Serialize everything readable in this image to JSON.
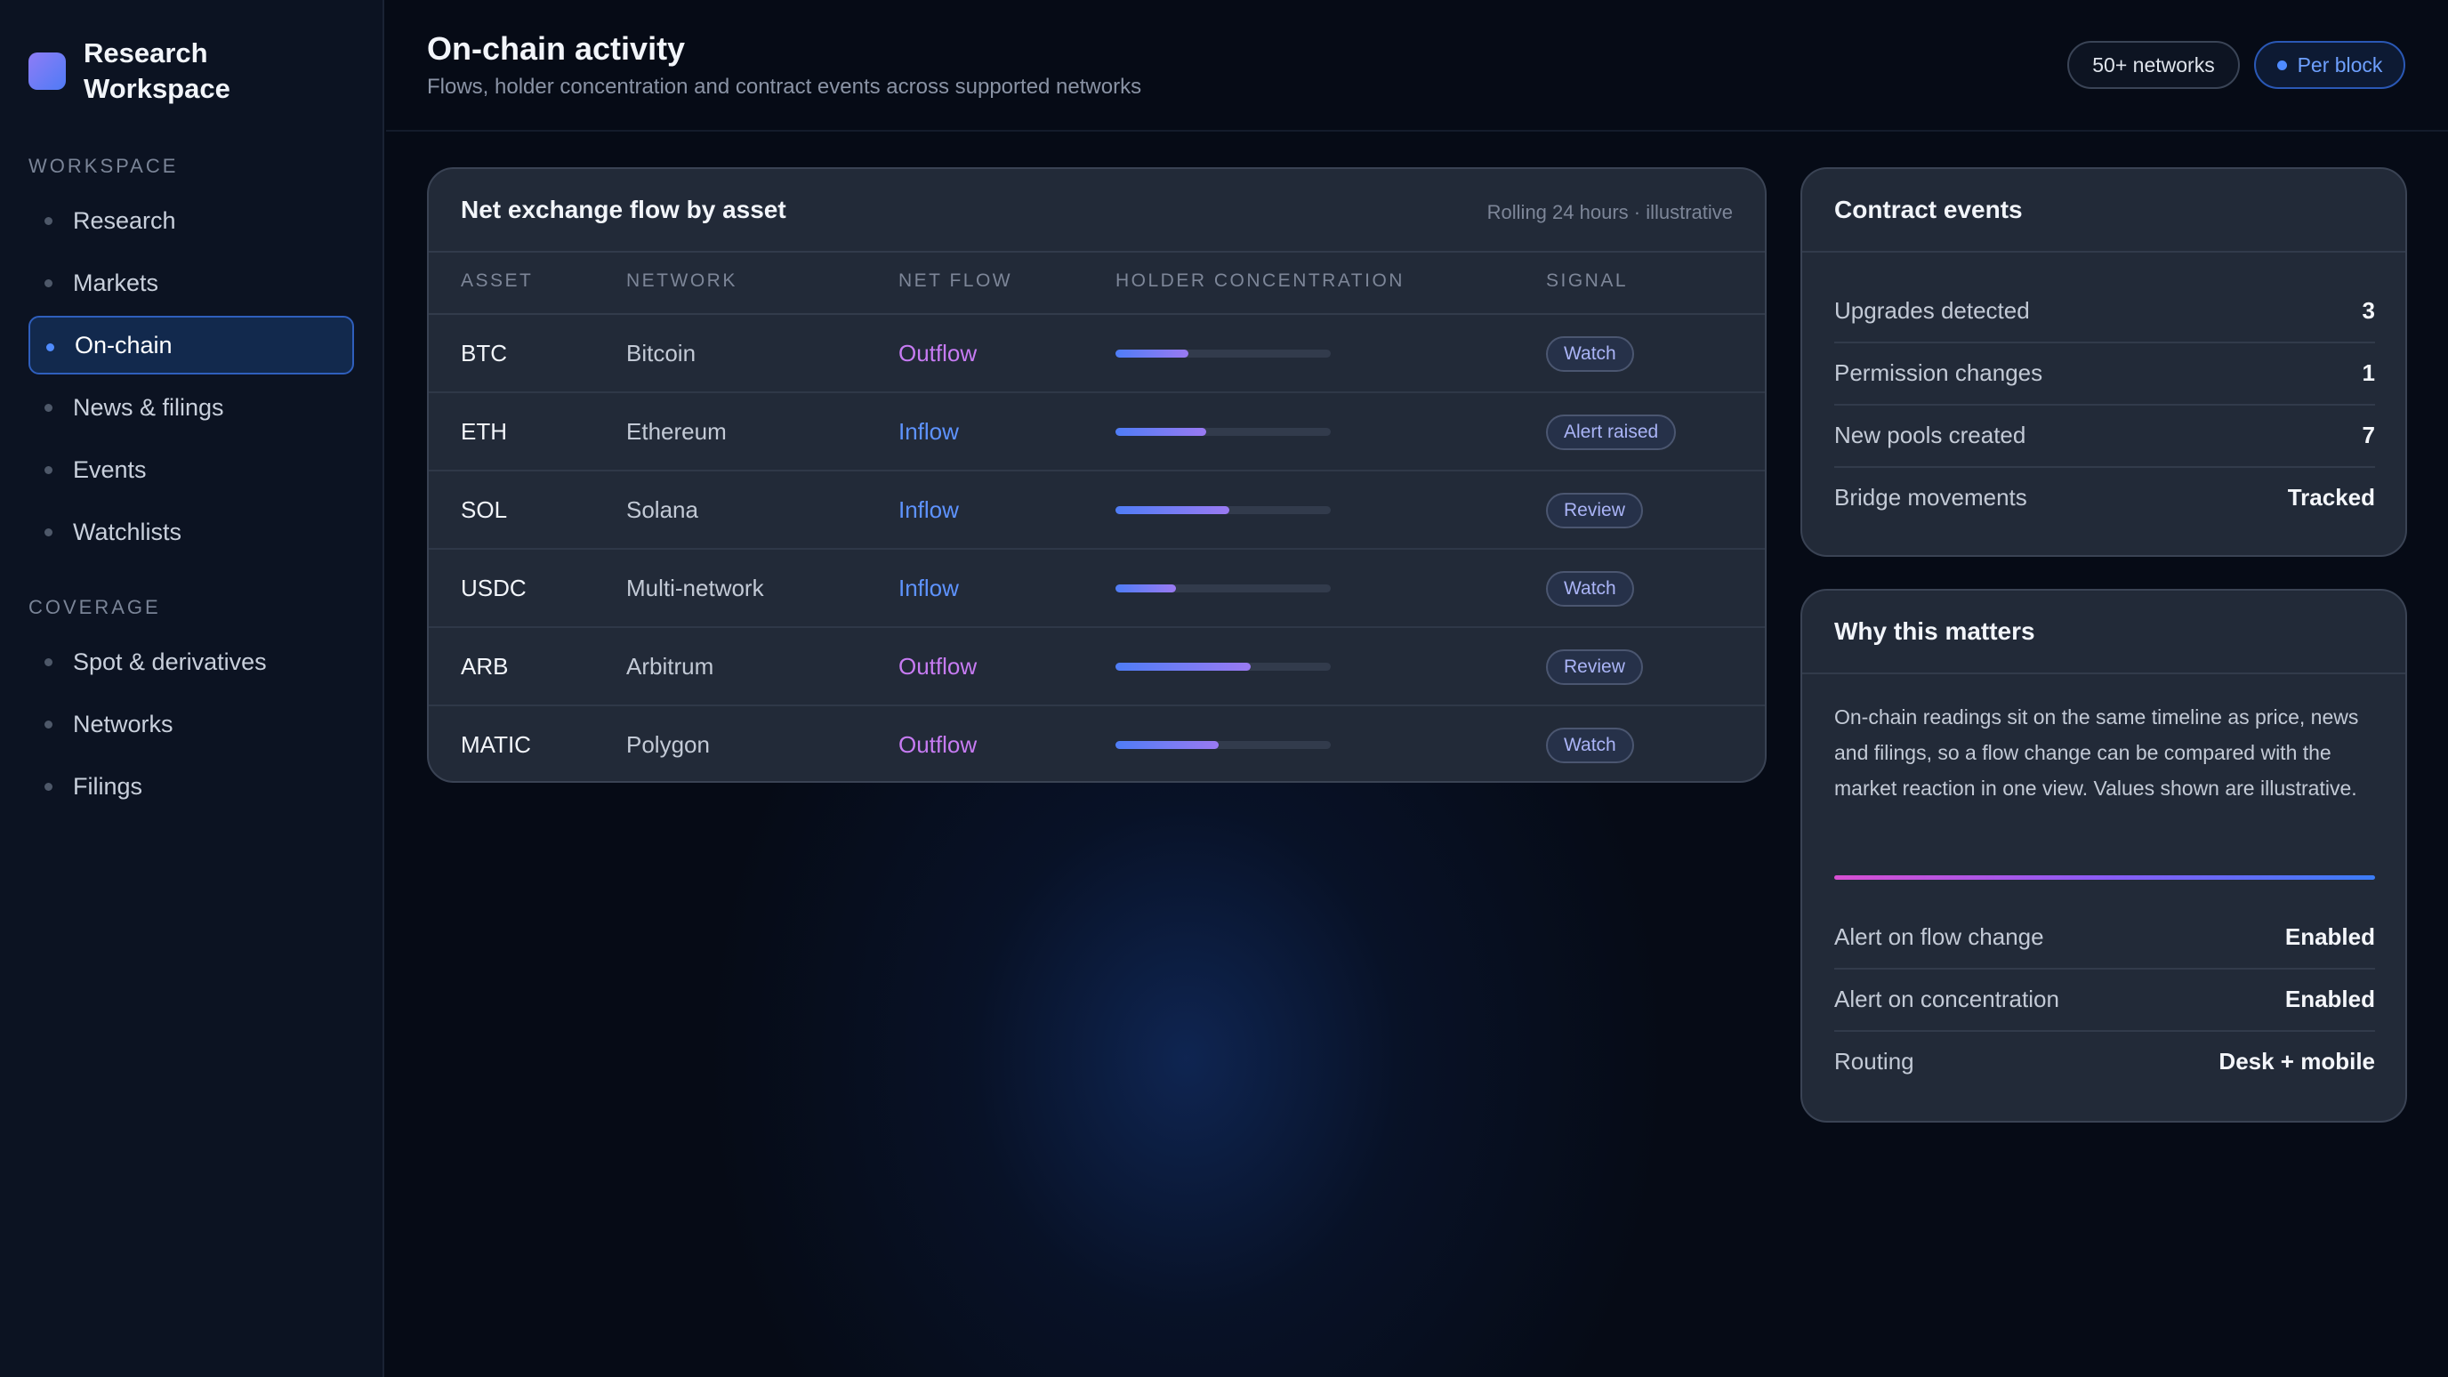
{
  "sidebar": {
    "brand": "Research Workspace",
    "sections": [
      {
        "title": "WORKSPACE",
        "items": [
          {
            "label": "Research",
            "active": false
          },
          {
            "label": "Markets",
            "active": false
          },
          {
            "label": "On-chain",
            "active": true
          },
          {
            "label": "News & filings",
            "active": false
          },
          {
            "label": "Events",
            "active": false
          },
          {
            "label": "Watchlists",
            "active": false
          }
        ]
      },
      {
        "title": "COVERAGE",
        "items": [
          {
            "label": "Spot & derivatives",
            "active": false
          },
          {
            "label": "Networks",
            "active": false
          },
          {
            "label": "Filings",
            "active": false
          }
        ]
      }
    ]
  },
  "header": {
    "title": "On-chain activity",
    "subtitle": "Flows, holder concentration and contract events across supported networks",
    "pill_networks": "50+ networks",
    "pill_block": "Per block"
  },
  "flow_table": {
    "title": "Net exchange flow by asset",
    "note": "Rolling 24 hours · illustrative",
    "columns": [
      "ASSET",
      "NETWORK",
      "NET FLOW",
      "HOLDER CONCENTRATION",
      "SIGNAL"
    ],
    "rows": [
      {
        "asset": "BTC",
        "network": "Bitcoin",
        "flow": "Outflow",
        "concentration": 0.34,
        "signal": "Watch"
      },
      {
        "asset": "ETH",
        "network": "Ethereum",
        "flow": "Inflow",
        "concentration": 0.42,
        "signal": "Alert raised"
      },
      {
        "asset": "SOL",
        "network": "Solana",
        "flow": "Inflow",
        "concentration": 0.53,
        "signal": "Review"
      },
      {
        "asset": "USDC",
        "network": "Multi-network",
        "flow": "Inflow",
        "concentration": 0.28,
        "signal": "Watch"
      },
      {
        "asset": "ARB",
        "network": "Arbitrum",
        "flow": "Outflow",
        "concentration": 0.63,
        "signal": "Review"
      },
      {
        "asset": "MATIC",
        "network": "Polygon",
        "flow": "Outflow",
        "concentration": 0.48,
        "signal": "Watch"
      }
    ]
  },
  "contract_events": {
    "title": "Contract events",
    "items": [
      {
        "label": "Upgrades detected",
        "value": "3"
      },
      {
        "label": "Permission changes",
        "value": "1"
      },
      {
        "label": "New pools created",
        "value": "7"
      },
      {
        "label": "Bridge movements",
        "value": "Tracked"
      }
    ]
  },
  "why": {
    "title": "Why this matters",
    "text": "On-chain readings sit on the same timeline as price, news and filings, so a flow change can be compared with the market reaction in one view. Values shown are illustrative.",
    "settings": [
      {
        "label": "Alert on flow change",
        "value": "Enabled"
      },
      {
        "label": "Alert on concentration",
        "value": "Enabled"
      },
      {
        "label": "Routing",
        "value": "Desk + mobile"
      }
    ]
  },
  "colors": {
    "accent": "#4f8bff",
    "outflow": "#c77bf3",
    "inflow": "#5e93ff"
  }
}
